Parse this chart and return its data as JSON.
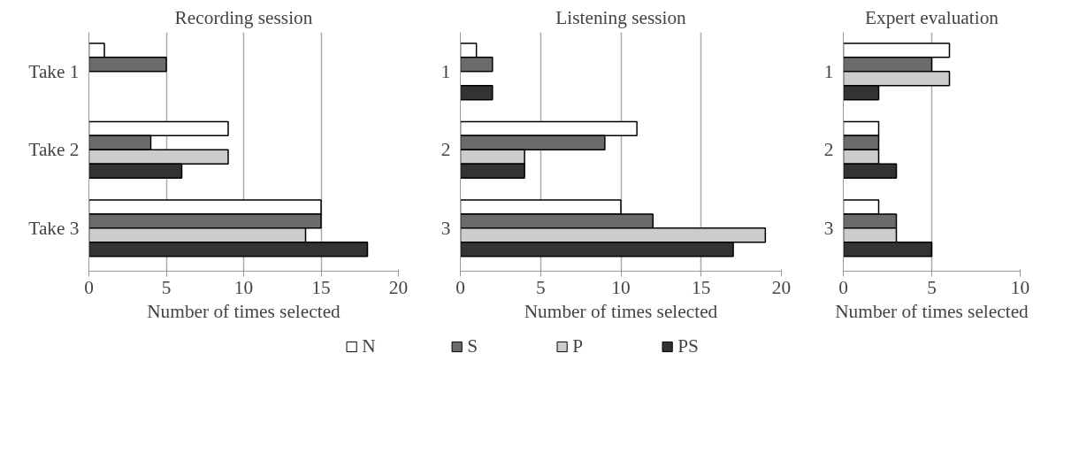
{
  "chart_data": [
    {
      "type": "bar",
      "orientation": "horizontal",
      "title": "Recording session",
      "xlabel": "Number of times selected",
      "categories": [
        "Take 1",
        "Take 2",
        "Take 3"
      ],
      "xlim": [
        0,
        20
      ],
      "xticks": [
        0,
        5,
        10,
        15,
        20
      ],
      "grid": "x",
      "legend": "bottom",
      "series": [
        {
          "name": "N",
          "color": "#ffffff",
          "values": [
            1,
            9,
            15
          ]
        },
        {
          "name": "S",
          "color": "#6b6b6b",
          "values": [
            5,
            4,
            15
          ]
        },
        {
          "name": "P",
          "color": "#cccccc",
          "values": [
            null,
            9,
            14
          ]
        },
        {
          "name": "PS",
          "color": "#333333",
          "values": [
            null,
            6,
            18
          ]
        }
      ]
    },
    {
      "type": "bar",
      "orientation": "horizontal",
      "title": "Listening session",
      "xlabel": "Number of times selected",
      "categories": [
        "1",
        "2",
        "3"
      ],
      "xlim": [
        0,
        20
      ],
      "xticks": [
        0,
        5,
        10,
        15,
        20
      ],
      "grid": "x",
      "series": [
        {
          "color": "#ffffff",
          "values": [
            1,
            11,
            10
          ]
        },
        {
          "color": "#6b6b6b",
          "values": [
            2,
            9,
            12
          ]
        },
        {
          "color": "#cccccc",
          "values": [
            null,
            4,
            19
          ]
        },
        {
          "color": "#333333",
          "values": [
            2,
            4,
            17
          ]
        }
      ]
    },
    {
      "type": "bar",
      "orientation": "horizontal",
      "title": "Expert evaluation",
      "xlabel": "Number of times selected",
      "categories": [
        "1",
        "2",
        "3"
      ],
      "xlim": [
        0,
        10
      ],
      "xticks": [
        0,
        5,
        10
      ],
      "grid": "x",
      "series": [
        {
          "color": "#ffffff",
          "values": [
            6,
            2,
            2
          ]
        },
        {
          "color": "#6b6b6b",
          "values": [
            5,
            2,
            3
          ]
        },
        {
          "color": "#cccccc",
          "values": [
            6,
            2,
            3
          ]
        },
        {
          "color": "#333333",
          "values": [
            2,
            3,
            5
          ]
        }
      ]
    }
  ]
}
